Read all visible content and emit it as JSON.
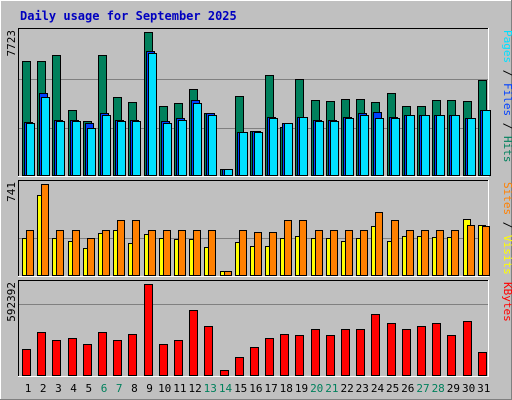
{
  "title": "Daily usage for September 2025",
  "colors": {
    "hits": "#00805c",
    "files": "#0040ff",
    "pages": "#00e0ff",
    "visits": "#ffff00",
    "sites": "#ff8000",
    "kbytes": "#ff0000",
    "weekend_label": "#00805c",
    "weekday_label": "#000000"
  },
  "chart_data": [
    {
      "type": "bar",
      "panel": "requests",
      "ymax_label": "7723",
      "ylim": [
        0,
        7723
      ],
      "right_labels": [
        {
          "text": "Pages",
          "color": "#00e0ff"
        },
        {
          "text": " / ",
          "color": "#000000"
        },
        {
          "text": "Files",
          "color": "#0040ff"
        },
        {
          "text": " / ",
          "color": "#000000"
        },
        {
          "text": "Hits",
          "color": "#00805c"
        }
      ],
      "series": [
        {
          "name": "Hits",
          "color": "#00805c",
          "values": [
            6155,
            6155,
            6482,
            3532,
            2921,
            6482,
            4186,
            3930,
            7723,
            3728,
            3864,
            4656,
            3339,
            333,
            4249,
            2357,
            5418,
            2617,
            5193,
            4053,
            3991,
            4118,
            4118,
            3930,
            4453,
            3728,
            3728,
            4053,
            4053,
            3991,
            5132
          ]
        },
        {
          "name": "Files",
          "color": "#0040ff",
          "values": [
            2856,
            4453,
            2988,
            2988,
            2789,
            3339,
            2988,
            2988,
            6678,
            2921,
            3056,
            4053,
            3339,
            333,
            2330,
            2357,
            3125,
            2789,
            3125,
            2988,
            2988,
            3125,
            3339,
            3395,
            3125,
            3261,
            3261,
            3261,
            3261,
            3056,
            3532
          ]
        },
        {
          "name": "Pages",
          "color": "#00e0ff",
          "values": [
            2789,
            4186,
            2921,
            2921,
            2551,
            3261,
            2921,
            2921,
            6614,
            2789,
            2988,
            3864,
            3261,
            333,
            2330,
            2330,
            3056,
            2789,
            3125,
            2921,
            2921,
            3056,
            3261,
            3056,
            3056,
            3261,
            3261,
            3261,
            3261,
            3056,
            3532
          ]
        }
      ],
      "x": [
        1,
        2,
        3,
        4,
        5,
        6,
        7,
        8,
        9,
        10,
        11,
        12,
        13,
        14,
        15,
        16,
        17,
        18,
        19,
        20,
        21,
        22,
        23,
        24,
        25,
        26,
        27,
        28,
        29,
        30,
        31
      ]
    },
    {
      "type": "bar",
      "panel": "visitors",
      "ymax_label": "741",
      "ylim": [
        0,
        741
      ],
      "right_labels": [
        {
          "text": "Sites",
          "color": "#ff8000"
        },
        {
          "text": " / ",
          "color": "#000000"
        },
        {
          "text": "Visits",
          "color": "#ffff00"
        }
      ],
      "series": [
        {
          "name": "Visits",
          "color": "#ffff00",
          "values": [
            300,
            650,
            300,
            280,
            220,
            340,
            370,
            260,
            330,
            300,
            290,
            290,
            230,
            30,
            270,
            240,
            240,
            300,
            320,
            300,
            300,
            280,
            300,
            400,
            280,
            320,
            320,
            310,
            310,
            460,
            410
          ]
        },
        {
          "name": "Sites",
          "color": "#ff8000",
          "values": [
            370,
            741,
            370,
            370,
            300,
            370,
            450,
            450,
            370,
            370,
            370,
            370,
            370,
            30,
            370,
            350,
            350,
            450,
            450,
            370,
            370,
            370,
            370,
            510,
            450,
            370,
            370,
            370,
            370,
            410,
            400
          ]
        }
      ],
      "x": [
        1,
        2,
        3,
        4,
        5,
        6,
        7,
        8,
        9,
        10,
        11,
        12,
        13,
        14,
        15,
        16,
        17,
        18,
        19,
        20,
        21,
        22,
        23,
        24,
        25,
        26,
        27,
        28,
        29,
        30,
        31
      ]
    },
    {
      "type": "bar",
      "panel": "kbytes",
      "ymax_label": "592392",
      "ylim": [
        0,
        592392
      ],
      "right_labels": [
        {
          "text": "KBytes",
          "color": "#ff0000"
        }
      ],
      "series": [
        {
          "name": "KBytes",
          "color": "#ff0000",
          "values": [
            170000,
            280000,
            230000,
            240000,
            200000,
            280000,
            230000,
            270000,
            592392,
            200000,
            230000,
            420000,
            320000,
            30000,
            120000,
            180000,
            240000,
            270000,
            260000,
            300000,
            260000,
            300000,
            300000,
            400000,
            340000,
            300000,
            320000,
            340000,
            260000,
            350000,
            150000
          ]
        }
      ],
      "x": [
        1,
        2,
        3,
        4,
        5,
        6,
        7,
        8,
        9,
        10,
        11,
        12,
        13,
        14,
        15,
        16,
        17,
        18,
        19,
        20,
        21,
        22,
        23,
        24,
        25,
        26,
        27,
        28,
        29,
        30,
        31
      ]
    }
  ],
  "x_axis": {
    "labels": [
      "1",
      "2",
      "3",
      "4",
      "5",
      "6",
      "7",
      "8",
      "9",
      "10",
      "11",
      "12",
      "13",
      "14",
      "15",
      "16",
      "17",
      "18",
      "19",
      "20",
      "21",
      "22",
      "23",
      "24",
      "25",
      "26",
      "27",
      "28",
      "29",
      "30",
      "31"
    ],
    "weekend_days": [
      "6",
      "7",
      "13",
      "14",
      "20",
      "21",
      "27",
      "28"
    ]
  }
}
